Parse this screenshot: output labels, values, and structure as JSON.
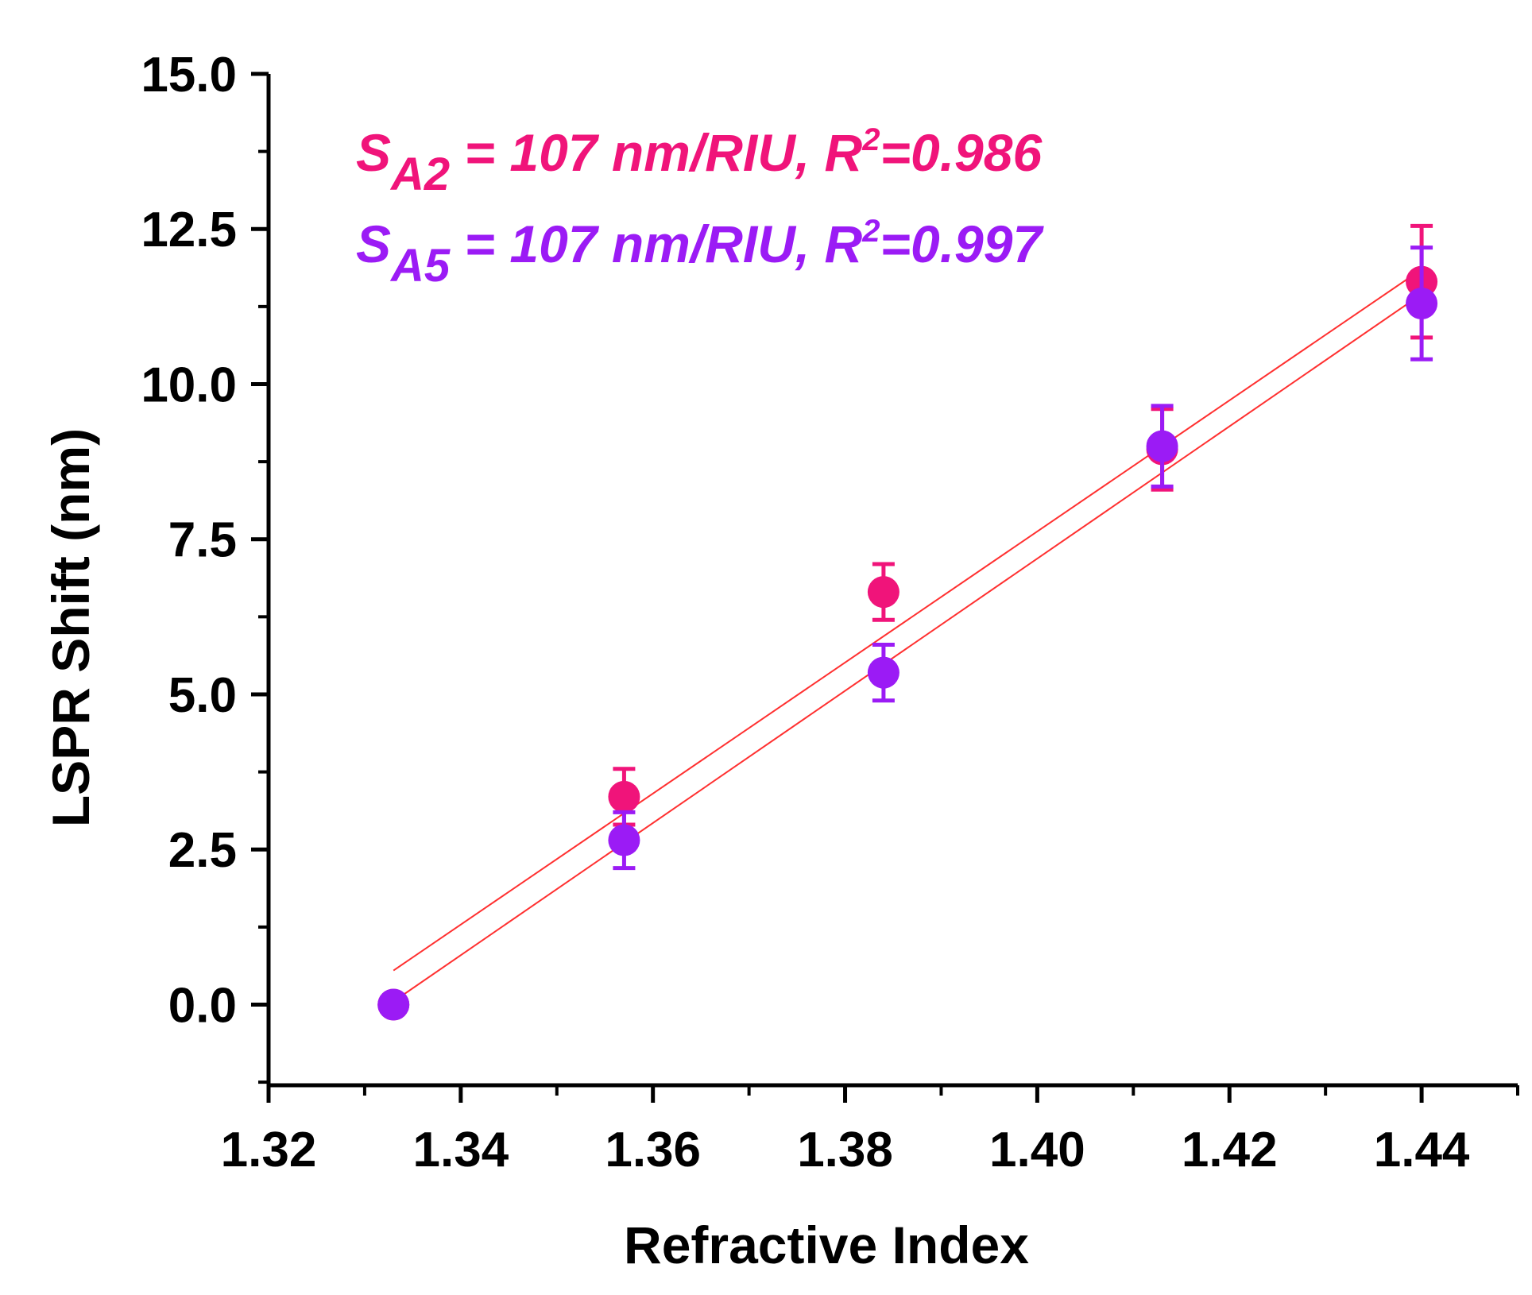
{
  "chart_data": {
    "type": "scatter",
    "xlabel": "Refractive Index",
    "ylabel": "LSPR Shift (nm)",
    "xlim": [
      1.32,
      1.45
    ],
    "ylim": [
      -1.3,
      15.0
    ],
    "xticks": [
      "1.32",
      "1.34",
      "1.36",
      "1.38",
      "1.40",
      "1.42",
      "1.44"
    ],
    "yticks": [
      "0.0",
      "2.5",
      "5.0",
      "7.5",
      "10.0",
      "12.5",
      "15.0"
    ],
    "grid": false,
    "annotations": [
      {
        "symbol": "S",
        "subscript": "A2",
        "equation": " = 107 nm/RIU, R",
        "superscript": "2",
        "value": "=0.986",
        "color": "#f0147a"
      },
      {
        "symbol": "S",
        "subscript": "A5",
        "equation": " = 107 nm/RIU, R",
        "superscript": "2",
        "value": "=0.997",
        "color": "#9b1bf5"
      }
    ],
    "series": [
      {
        "color": "#f0147a",
        "points": [
          {
            "x": 1.333,
            "y": 0.0,
            "err": 0.0
          },
          {
            "x": 1.357,
            "y": 3.35,
            "err": 0.45
          },
          {
            "x": 1.384,
            "y": 6.65,
            "err": 0.45
          },
          {
            "x": 1.413,
            "y": 8.95,
            "err": 0.65
          },
          {
            "x": 1.44,
            "y": 11.65,
            "err": 0.9
          }
        ],
        "fit": {
          "x": [
            1.333,
            1.44
          ],
          "y": [
            0.55,
            11.85
          ]
        }
      },
      {
        "color": "#9b1bf5",
        "points": [
          {
            "x": 1.333,
            "y": 0.0,
            "err": 0.0
          },
          {
            "x": 1.357,
            "y": 2.65,
            "err": 0.45
          },
          {
            "x": 1.384,
            "y": 5.35,
            "err": 0.45
          },
          {
            "x": 1.413,
            "y": 9.0,
            "err": 0.65
          },
          {
            "x": 1.44,
            "y": 11.3,
            "err": 0.9
          }
        ],
        "fit": {
          "x": [
            1.333,
            1.44
          ],
          "y": [
            0.05,
            11.45
          ]
        }
      }
    ],
    "fit_color": "#ff3030"
  }
}
